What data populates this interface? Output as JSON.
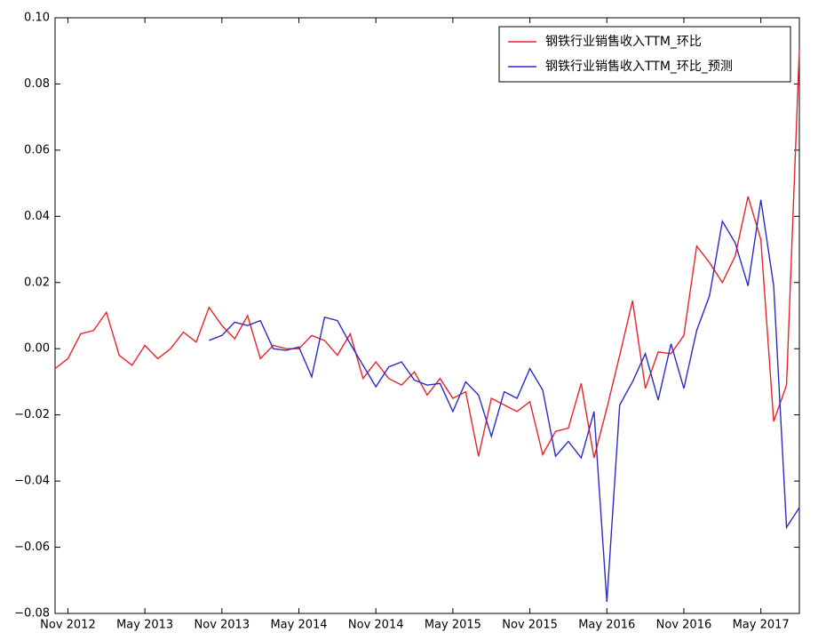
{
  "chart_data": {
    "type": "line",
    "x": [
      "2012-10",
      "2012-11",
      "2012-12",
      "2013-01",
      "2013-02",
      "2013-03",
      "2013-04",
      "2013-05",
      "2013-06",
      "2013-07",
      "2013-08",
      "2013-09",
      "2013-10",
      "2013-11",
      "2013-12",
      "2014-01",
      "2014-02",
      "2014-03",
      "2014-04",
      "2014-05",
      "2014-06",
      "2014-07",
      "2014-08",
      "2014-09",
      "2014-10",
      "2014-11",
      "2014-12",
      "2015-01",
      "2015-02",
      "2015-03",
      "2015-04",
      "2015-05",
      "2015-06",
      "2015-07",
      "2015-08",
      "2015-09",
      "2015-10",
      "2015-11",
      "2015-12",
      "2016-01",
      "2016-02",
      "2016-03",
      "2016-04",
      "2016-05",
      "2016-06",
      "2016-07",
      "2016-08",
      "2016-09",
      "2016-10",
      "2016-11",
      "2016-12",
      "2017-01",
      "2017-02",
      "2017-03",
      "2017-04",
      "2017-05",
      "2017-06",
      "2017-07",
      "2017-08"
    ],
    "series": [
      {
        "name": "钢铁行业销售收入TTM_环比",
        "color": "#e8232b",
        "values": [
          -0.006,
          -0.003,
          0.0045,
          0.0055,
          0.011,
          -0.002,
          -0.005,
          0.001,
          -0.003,
          0.0,
          0.005,
          0.002,
          0.0125,
          0.007,
          0.003,
          0.01,
          -0.003,
          0.001,
          0.0,
          0.0,
          0.004,
          0.0025,
          -0.002,
          0.0045,
          -0.009,
          -0.004,
          -0.009,
          -0.011,
          -0.007,
          -0.014,
          -0.009,
          -0.015,
          -0.013,
          -0.0325,
          -0.015,
          -0.017,
          -0.019,
          -0.016,
          -0.032,
          -0.025,
          -0.024,
          -0.0105,
          -0.033,
          -0.018,
          -0.002,
          0.0145,
          -0.012,
          -0.001,
          -0.0015,
          0.004,
          0.031,
          0.026,
          0.02,
          0.028,
          0.046,
          0.033,
          -0.022,
          -0.011,
          0.0905
        ]
      },
      {
        "name": "钢铁行业销售收入TTM_环比_预测",
        "color": "#2b2bc8",
        "values": [
          null,
          null,
          null,
          null,
          null,
          null,
          null,
          null,
          null,
          null,
          null,
          null,
          0.0025,
          0.004,
          0.008,
          0.007,
          0.0085,
          0.0,
          -0.0005,
          0.0005,
          -0.0085,
          0.0095,
          0.0085,
          0.0015,
          -0.005,
          -0.0115,
          -0.0055,
          -0.004,
          -0.0095,
          -0.011,
          -0.0105,
          -0.019,
          -0.01,
          -0.014,
          -0.0265,
          -0.013,
          -0.015,
          -0.006,
          -0.0125,
          -0.0325,
          -0.028,
          -0.033,
          -0.019,
          -0.0765,
          -0.017,
          -0.01,
          -0.0015,
          -0.0155,
          0.0015,
          -0.012,
          0.0055,
          0.016,
          0.0385,
          0.032,
          0.019,
          0.045,
          0.019,
          -0.054,
          -0.048
        ]
      }
    ],
    "xlim": [
      "2012-10",
      "2017-08"
    ],
    "xticks": [
      {
        "value": "2012-11",
        "label": "Nov 2012"
      },
      {
        "value": "2013-05",
        "label": "May 2013"
      },
      {
        "value": "2013-11",
        "label": "Nov 2013"
      },
      {
        "value": "2014-05",
        "label": "May 2014"
      },
      {
        "value": "2014-11",
        "label": "Nov 2014"
      },
      {
        "value": "2015-05",
        "label": "May 2015"
      },
      {
        "value": "2015-11",
        "label": "Nov 2015"
      },
      {
        "value": "2016-05",
        "label": "May 2016"
      },
      {
        "value": "2016-11",
        "label": "Nov 2016"
      },
      {
        "value": "2017-05",
        "label": "May 2017"
      }
    ],
    "ylim": [
      -0.08,
      0.1
    ],
    "yticks": [
      {
        "value": -0.08,
        "label": "−0.08"
      },
      {
        "value": -0.06,
        "label": "−0.06"
      },
      {
        "value": -0.04,
        "label": "−0.04"
      },
      {
        "value": -0.02,
        "label": "−0.02"
      },
      {
        "value": 0,
        "label": "0.00"
      },
      {
        "value": 0.02,
        "label": "0.02"
      },
      {
        "value": 0.04,
        "label": "0.04"
      },
      {
        "value": 0.06,
        "label": "0.06"
      },
      {
        "value": 0.08,
        "label": "0.08"
      },
      {
        "value": 0.1,
        "label": "0.10"
      }
    ],
    "grid": false,
    "legend": "upper right"
  }
}
